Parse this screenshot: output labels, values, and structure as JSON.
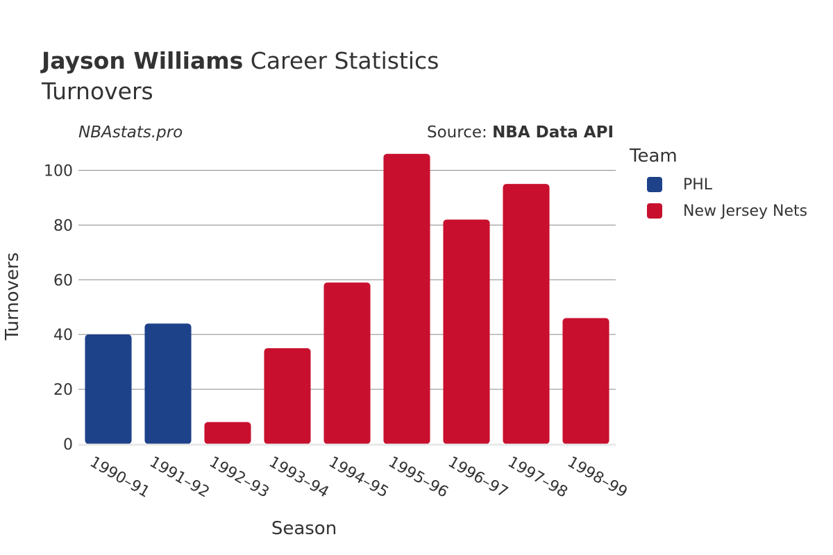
{
  "header": {
    "title_bold": "Jayson Williams",
    "title_rest": " Career Statistics",
    "subtitle": "Turnovers",
    "watermark": "NBAstats.pro",
    "source_prefix": "Source: ",
    "source_name": "NBA Data API"
  },
  "legend": {
    "title": "Team",
    "items": [
      {
        "label": "PHL",
        "color": "#1d428a"
      },
      {
        "label": "New Jersey Nets",
        "color": "#c8102e"
      }
    ]
  },
  "chart_data": {
    "type": "bar",
    "xlabel": "Season",
    "ylabel": "Turnovers",
    "ylim": [
      0,
      110
    ],
    "yticks": [
      0,
      20,
      40,
      60,
      80,
      100
    ],
    "grid": true,
    "legend_placement": "right",
    "categories": [
      "1990–91",
      "1991–92",
      "1992–93",
      "1993–94",
      "1994–95",
      "1995–96",
      "1996–97",
      "1997–98",
      "1998–99"
    ],
    "values": [
      40,
      44,
      8,
      35,
      59,
      106,
      82,
      95,
      46
    ],
    "teams": [
      "PHL",
      "PHL",
      "New Jersey Nets",
      "New Jersey Nets",
      "New Jersey Nets",
      "New Jersey Nets",
      "New Jersey Nets",
      "New Jersey Nets",
      "New Jersey Nets"
    ]
  }
}
